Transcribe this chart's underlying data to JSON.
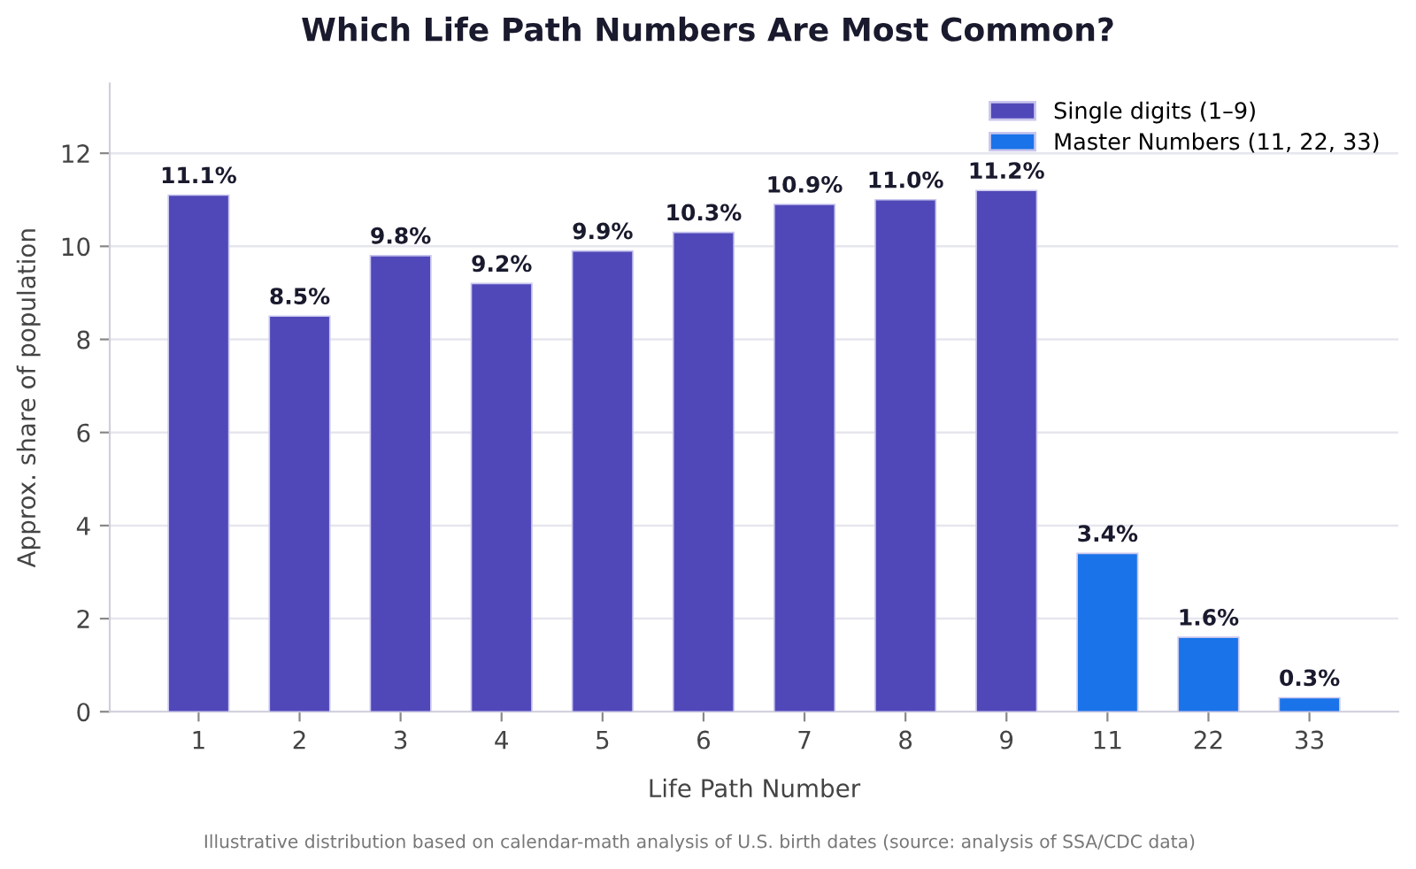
{
  "chart_data": {
    "type": "bar",
    "title": "Which Life Path Numbers Are Most Common?",
    "xlabel": "Life Path Number",
    "ylabel": "Approx. share of population",
    "categories": [
      "1",
      "2",
      "3",
      "4",
      "5",
      "6",
      "7",
      "8",
      "9",
      "11",
      "22",
      "33"
    ],
    "series": [
      {
        "name": "Single digits (1–9)",
        "color": "#5048b8",
        "values": [
          11.1,
          8.5,
          9.8,
          9.2,
          9.9,
          10.3,
          10.9,
          11.0,
          11.2,
          null,
          null,
          null
        ],
        "value_labels": [
          "11.1%",
          "8.5%",
          "9.8%",
          "9.2%",
          "9.9%",
          "10.3%",
          "10.9%",
          "11.0%",
          "11.2%",
          null,
          null,
          null
        ]
      },
      {
        "name": "Master Numbers (11, 22, 33)",
        "color": "#1a73e8",
        "values": [
          null,
          null,
          null,
          null,
          null,
          null,
          null,
          null,
          null,
          3.4,
          1.6,
          0.3
        ],
        "value_labels": [
          null,
          null,
          null,
          null,
          null,
          null,
          null,
          null,
          null,
          "3.4%",
          "1.6%",
          "0.3%"
        ]
      }
    ],
    "ylim": [
      0,
      13.5
    ],
    "yticks": [
      0,
      2,
      4,
      6,
      8,
      10,
      12
    ],
    "grid": "y",
    "legend": "top right",
    "annotations": [
      "Illustrative distribution based on calendar-math analysis of U.S. birth dates (source: analysis of SSA/CDC data)"
    ]
  }
}
